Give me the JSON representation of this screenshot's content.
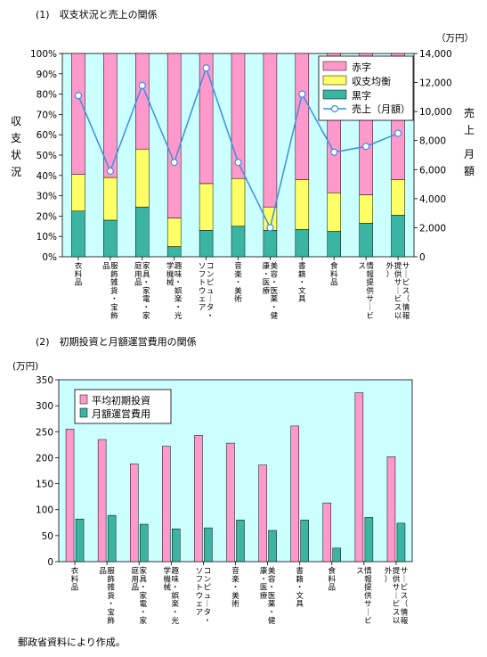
{
  "section1": {
    "title": "(1)　収支状況と売上の関係"
  },
  "section2": {
    "title": "(2)　初期投資と月額運営費用の関係"
  },
  "footnote": "郵政省資料により作成。",
  "chart_data": [
    {
      "type": "bar",
      "subtype": "stacked-100-with-line",
      "categories": [
        "衣料品",
        "服飾雑貨・宝飾品",
        "家具・家電・家庭用品",
        "趣味・娯楽・光学機械",
        "コンピュータ・ソフトウェア",
        "音楽・美術",
        "美容・医薬・健康・医療",
        "書籍・文具",
        "食料品",
        "情報提供サービス",
        "サービス（情報提供サービス以外）"
      ],
      "left_axis": {
        "label": "収支状況",
        "ylim": [
          0,
          100
        ],
        "ticks": [
          "0%",
          "10%",
          "20%",
          "30%",
          "40%",
          "50%",
          "60%",
          "70%",
          "80%",
          "90%",
          "100%"
        ]
      },
      "right_axis": {
        "label": "売上　月額",
        "unit": "（万円）",
        "ylim": [
          0,
          14000
        ],
        "ticks": [
          "0",
          "2,000",
          "4,000",
          "6,000",
          "8,000",
          "10,000",
          "12,000",
          "14,000"
        ]
      },
      "series": [
        {
          "name": "黒字",
          "color": "#3ab5a3",
          "values": [
            22.5,
            18,
            24.5,
            5,
            13,
            15,
            13,
            13.5,
            12.5,
            16.5,
            20.5
          ]
        },
        {
          "name": "収支均衡",
          "color": "#ffff66",
          "values": [
            18,
            21,
            28.5,
            14,
            23,
            23.5,
            11.5,
            24.5,
            19,
            14,
            17.5
          ]
        },
        {
          "name": "赤字",
          "color": "#ff99cc",
          "values": [
            59.5,
            61,
            47,
            81,
            64,
            61.5,
            75.5,
            62,
            68.5,
            69.5,
            62
          ]
        },
        {
          "name": "売上（月額）",
          "type": "line",
          "color": "#3b8fe0",
          "axis": "right",
          "values": [
            11100,
            5900,
            11800,
            6500,
            13000,
            6500,
            2000,
            11200,
            7200,
            7600,
            8500
          ]
        }
      ],
      "legend_position": "top-right",
      "grid": false,
      "plot_background": "#ccffff"
    },
    {
      "type": "bar",
      "subtype": "grouped",
      "categories": [
        "衣料品",
        "服飾雑貨・宝飾品",
        "家具・家電・家庭用品",
        "趣味・娯楽・光学機械",
        "コンピュータ・ソフトウェア",
        "音楽・美術",
        "美容・医薬・健康・医療",
        "書籍・文具",
        "食料品",
        "情報提供サービス",
        "サービス（情報提供サービス以外）"
      ],
      "y_axis": {
        "unit": "(万円)",
        "ylim": [
          0,
          350
        ],
        "ticks": [
          "0",
          "50",
          "100",
          "150",
          "200",
          "250",
          "300",
          "350"
        ]
      },
      "series": [
        {
          "name": "平均初期投資",
          "color": "#ff99cc",
          "values": [
            255,
            235,
            188,
            222,
            243,
            228,
            186,
            261,
            113,
            325,
            202
          ]
        },
        {
          "name": "月額運営費用",
          "color": "#3ab5a3",
          "values": [
            82,
            89,
            72,
            63,
            65,
            80,
            60,
            80,
            26,
            85,
            74
          ]
        }
      ],
      "legend_position": "top-left",
      "grid": false,
      "plot_background": "#ccffff"
    }
  ]
}
